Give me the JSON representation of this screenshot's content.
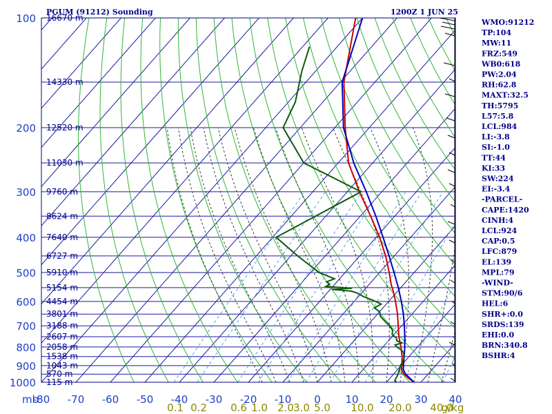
{
  "header": {
    "title": "PGUM (91212) Sounding",
    "time": "1200Z  1 JUN 25"
  },
  "colors": {
    "frame": "#00008b",
    "grid": "#1a1aa0",
    "dry_adiabat": "#2fb52f",
    "moist_adiabat": "#3a3a3a",
    "mixing_ratio": "#4aa3e8",
    "temperature": "#c80000",
    "dewpoint": "#0a5a0a",
    "parcel": "#0000c0"
  },
  "chart_data": {
    "type": "skew-t",
    "title": "PGUM (91212) Sounding",
    "pressure_axis": {
      "unit_label": "mb",
      "range": [
        1000,
        100
      ],
      "ticks": [
        "100",
        "200",
        "300",
        "400",
        "500",
        "600",
        "700",
        "800",
        "900",
        "1000"
      ]
    },
    "temperature_axis": {
      "range": [
        -80,
        40
      ],
      "ticks": [
        "-80",
        "-70",
        "-60",
        "-50",
        "-40",
        "-30",
        "-20",
        "-10",
        "0",
        "10",
        "20",
        "30",
        "40"
      ]
    },
    "heights": [
      {
        "p": 100,
        "label": "16670 m"
      },
      {
        "p": 150,
        "label": "14330 m"
      },
      {
        "p": 200,
        "label": "12520 m"
      },
      {
        "p": 250,
        "label": "11030 m"
      },
      {
        "p": 300,
        "label": "9760 m"
      },
      {
        "p": 350,
        "label": "8624 m"
      },
      {
        "p": 400,
        "label": "7640 m"
      },
      {
        "p": 450,
        "label": "6727 m"
      },
      {
        "p": 500,
        "label": "5910 m"
      },
      {
        "p": 550,
        "label": "5154 m"
      },
      {
        "p": 600,
        "label": "4454 m"
      },
      {
        "p": 650,
        "label": "3801 m"
      },
      {
        "p": 700,
        "label": "3188 m"
      },
      {
        "p": 750,
        "label": "2607 m"
      },
      {
        "p": 800,
        "label": "2058 m"
      },
      {
        "p": 850,
        "label": "1538 m"
      },
      {
        "p": 900,
        "label": "1043 m"
      },
      {
        "p": 950,
        "label": "570 m"
      },
      {
        "p": 1000,
        "label": "115 m"
      }
    ],
    "mixing_ratio_labels": [
      "0.1",
      "0.2",
      "0.6",
      "1.0",
      "2.0",
      "3.0",
      "5.0",
      "10.0",
      "20.0",
      "40.0",
      "g/kg"
    ],
    "temperature_profile": [
      {
        "p": 1000,
        "t": 28.0
      },
      {
        "p": 975,
        "t": 25.4
      },
      {
        "p": 950,
        "t": 23.0
      },
      {
        "p": 925,
        "t": 21.2
      },
      {
        "p": 900,
        "t": 20.2
      },
      {
        "p": 850,
        "t": 18.0
      },
      {
        "p": 800,
        "t": 15.2
      },
      {
        "p": 750,
        "t": 12.0
      },
      {
        "p": 700,
        "t": 9.0
      },
      {
        "p": 650,
        "t": 5.8
      },
      {
        "p": 600,
        "t": 2.0
      },
      {
        "p": 560,
        "t": -1.5
      },
      {
        "p": 540,
        "t": -3.5
      },
      {
        "p": 500,
        "t": -7.2
      },
      {
        "p": 450,
        "t": -12.5
      },
      {
        "p": 400,
        "t": -19.0
      },
      {
        "p": 350,
        "t": -27.0
      },
      {
        "p": 300,
        "t": -36.5
      },
      {
        "p": 250,
        "t": -47.0
      },
      {
        "p": 200,
        "t": -57.0
      },
      {
        "p": 150,
        "t": -69.0
      },
      {
        "p": 100,
        "t": -82.0
      }
    ],
    "dewpoint_profile": [
      {
        "p": 1000,
        "t": 23.0
      },
      {
        "p": 990,
        "t": 22.0
      },
      {
        "p": 960,
        "t": 21.5
      },
      {
        "p": 930,
        "t": 20.8
      },
      {
        "p": 900,
        "t": 19.8
      },
      {
        "p": 880,
        "t": 19.5
      },
      {
        "p": 860,
        "t": 19.0
      },
      {
        "p": 850,
        "t": 18.5
      },
      {
        "p": 830,
        "t": 17.5
      },
      {
        "p": 815,
        "t": 16.0
      },
      {
        "p": 800,
        "t": 14.0
      },
      {
        "p": 790,
        "t": 13.0
      },
      {
        "p": 780,
        "t": 14.5
      },
      {
        "p": 770,
        "t": 12.5
      },
      {
        "p": 755,
        "t": 11.5
      },
      {
        "p": 740,
        "t": 9.5
      },
      {
        "p": 720,
        "t": 8.5
      },
      {
        "p": 700,
        "t": 6.5
      },
      {
        "p": 680,
        "t": 4.0
      },
      {
        "p": 660,
        "t": 1.5
      },
      {
        "p": 640,
        "t": 0.0
      },
      {
        "p": 625,
        "t": -2.5
      },
      {
        "p": 610,
        "t": -1.5
      },
      {
        "p": 595,
        "t": -5.0
      },
      {
        "p": 582,
        "t": -8.5
      },
      {
        "p": 570,
        "t": -11.0
      },
      {
        "p": 562,
        "t": -13.5
      },
      {
        "p": 556,
        "t": -19.5
      },
      {
        "p": 552,
        "t": -14.0
      },
      {
        "p": 546,
        "t": -22.0
      },
      {
        "p": 538,
        "t": -21.5
      },
      {
        "p": 530,
        "t": -23.0
      },
      {
        "p": 520,
        "t": -21.5
      },
      {
        "p": 500,
        "t": -27.5
      },
      {
        "p": 450,
        "t": -38.0
      },
      {
        "p": 400,
        "t": -49.0
      },
      {
        "p": 300,
        "t": -36.0
      },
      {
        "p": 250,
        "t": -60.0
      },
      {
        "p": 200,
        "t": -75.0
      },
      {
        "p": 170,
        "t": -78.0
      },
      {
        "p": 140,
        "t": -84.0
      },
      {
        "p": 120,
        "t": -88.0
      }
    ],
    "parcel_profile": [
      {
        "p": 1000,
        "t": 28.0
      },
      {
        "p": 950,
        "t": 23.5
      },
      {
        "p": 924,
        "t": 21.7
      },
      {
        "p": 900,
        "t": 20.7
      },
      {
        "p": 850,
        "t": 18.6
      },
      {
        "p": 800,
        "t": 16.3
      },
      {
        "p": 750,
        "t": 13.7
      },
      {
        "p": 700,
        "t": 10.8
      },
      {
        "p": 650,
        "t": 7.5
      },
      {
        "p": 600,
        "t": 3.7
      },
      {
        "p": 550,
        "t": -0.7
      },
      {
        "p": 500,
        "t": -5.8
      },
      {
        "p": 450,
        "t": -11.5
      },
      {
        "p": 400,
        "t": -18.0
      },
      {
        "p": 350,
        "t": -25.5
      },
      {
        "p": 300,
        "t": -34.5
      },
      {
        "p": 250,
        "t": -45.5
      },
      {
        "p": 200,
        "t": -57.5
      },
      {
        "p": 150,
        "t": -69.5
      },
      {
        "p": 100,
        "t": -80.0
      }
    ]
  },
  "indices": [
    "WMO:91212",
    "TP:104",
    "MW:11",
    "FRZ:549",
    "WB0:618",
    "PW:2.04",
    "RH:62.8",
    "MAXT:32.5",
    "TH:5795",
    "L57:5.8",
    "LCL:984",
    "LI:-3.8",
    "SI:-1.0",
    "TT:44",
    "KI:33",
    "SW:224",
    "EI:-3.4",
    "-PARCEL-",
    "CAPE:1420",
    "CINH:4",
    "LCL:924",
    "CAP:0.5",
    "LFC:879",
    "EL:139",
    "MPL:79",
    "-WIND-",
    "STM:90/6",
    "HEL:6",
    "SHR+:0.0",
    "SRDS:139",
    "EHI:0.0",
    "BRN:340.8",
    "BSHR:4"
  ]
}
